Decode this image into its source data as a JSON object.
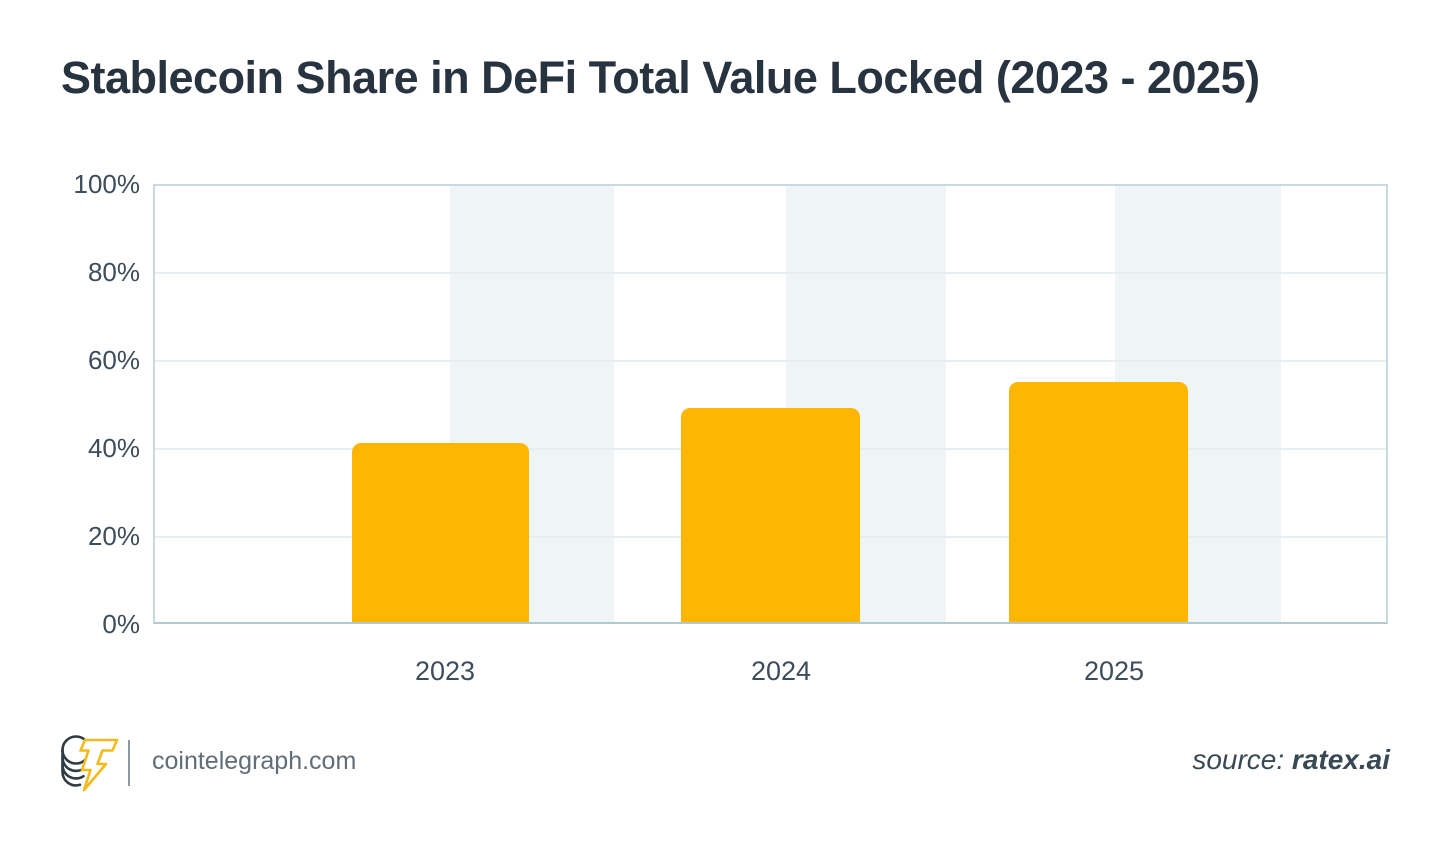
{
  "title": "Stablecoin Share in DeFi Total Value Locked (2023 - 2025)",
  "chart_data": {
    "type": "bar",
    "title": "Stablecoin Share in DeFi Total Value Locked (2023 - 2025)",
    "categories": [
      "2023",
      "2024",
      "2025"
    ],
    "values": [
      41,
      49,
      55
    ],
    "unit": "%",
    "xlabel": "",
    "ylabel": "",
    "ylim": [
      0,
      100
    ],
    "yticks": [
      0,
      20,
      40,
      60,
      80,
      100
    ],
    "ytick_labels_desc": [
      "100%",
      "80%",
      "60%",
      "40%",
      "20%",
      "0%"
    ],
    "grid": true,
    "legend": "none",
    "bar_color": "#feb602",
    "band_color": "#eff4f6"
  },
  "footer": {
    "brand": "cointelegraph.com",
    "source_label": "source:",
    "source_value": "ratex.ai"
  },
  "colors": {
    "title": "#27333f",
    "axis_label": "#3d4d5b",
    "bar": "#feb602",
    "band": "#eff4f6",
    "gridline": "#e7eef1",
    "plot_border": "#c9d9e0",
    "brand_text": "#606e79",
    "source_text": "#394954",
    "logo_yellow": "#f3ba19",
    "logo_dark": "#2f3b45"
  }
}
